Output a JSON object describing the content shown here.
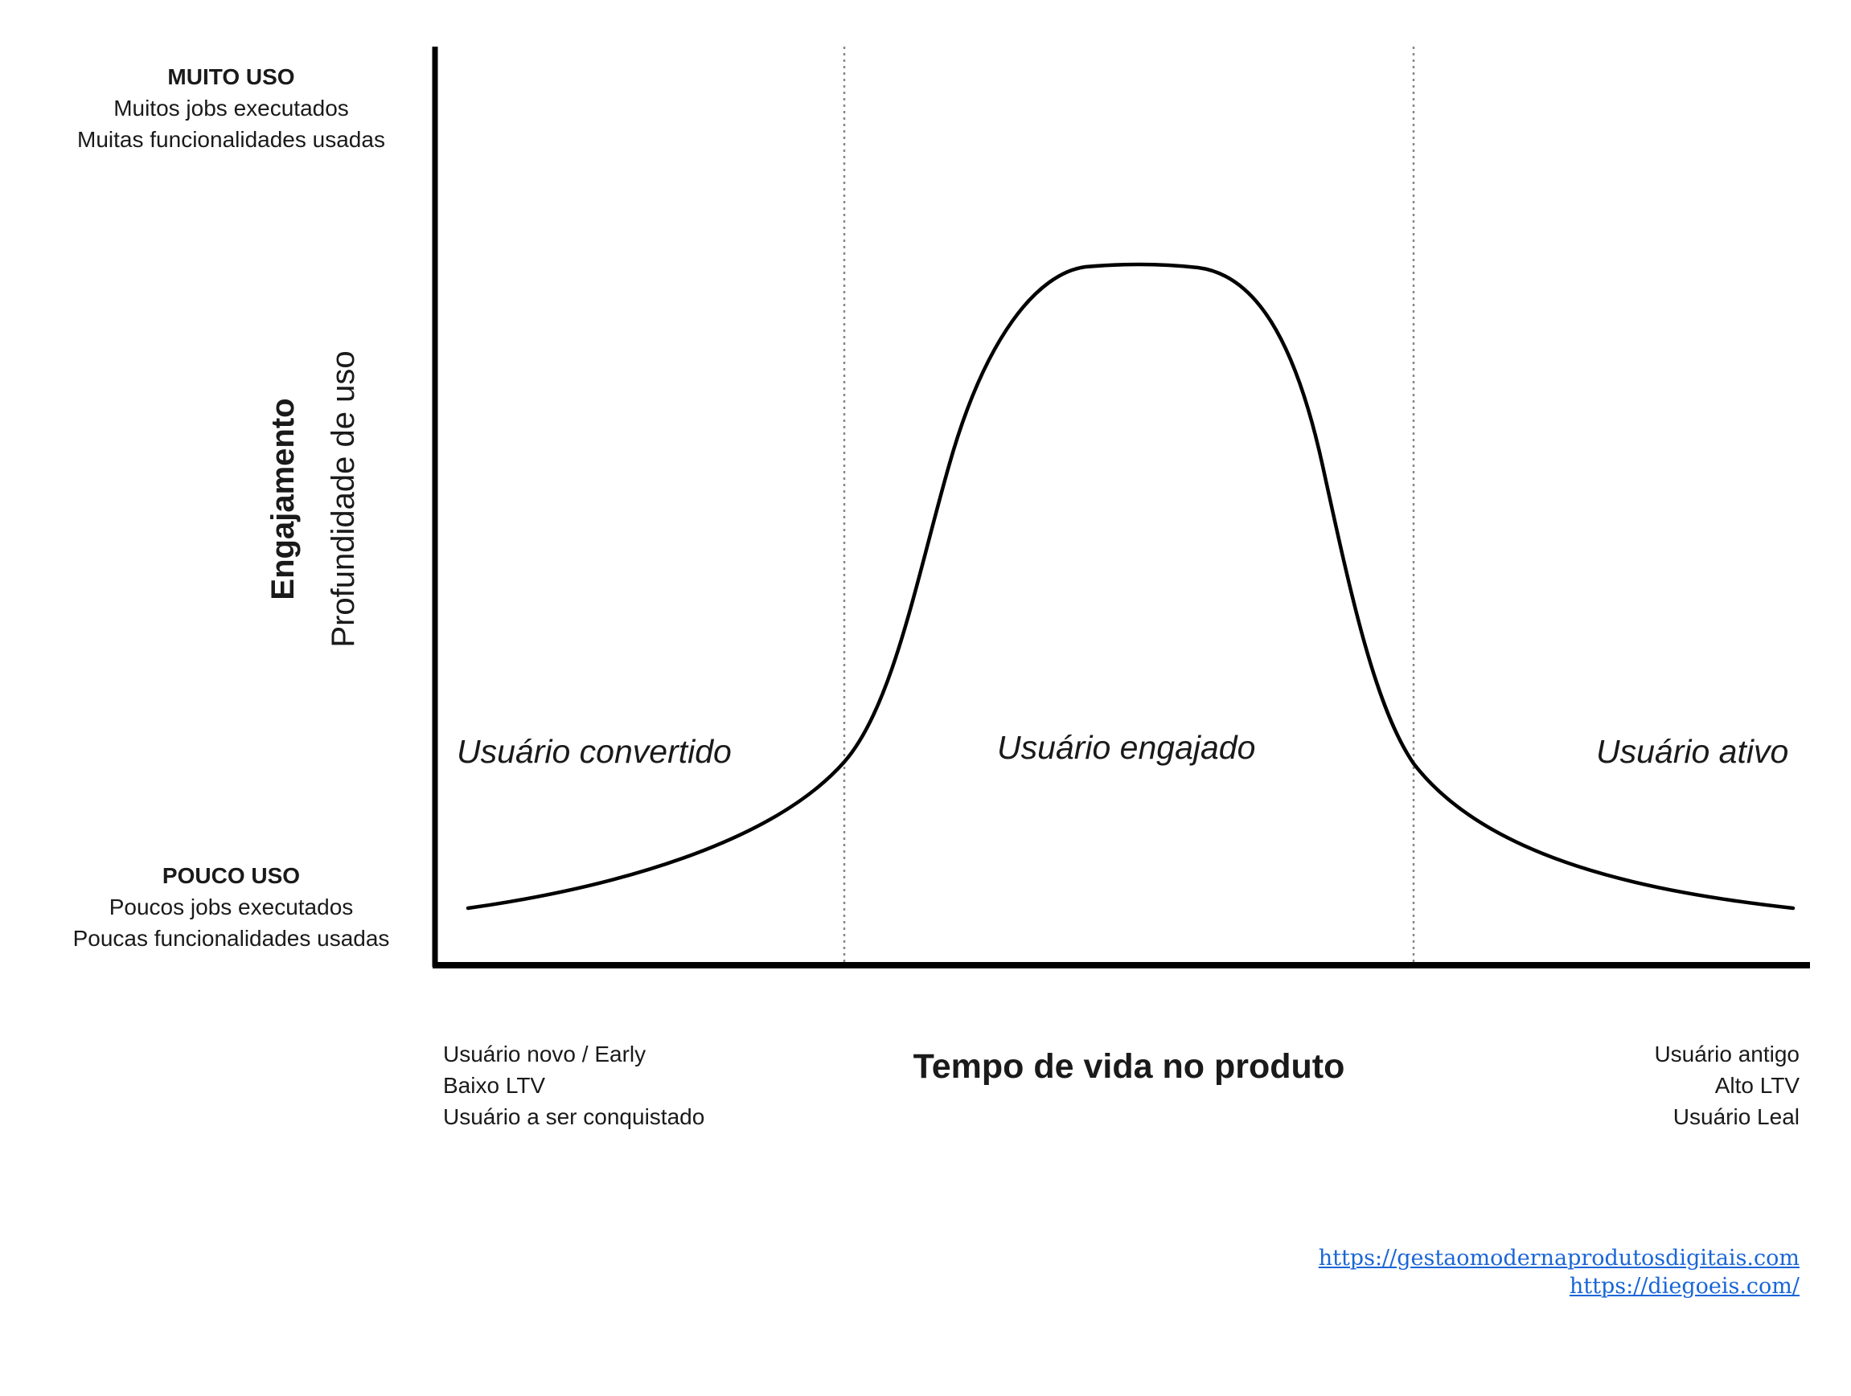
{
  "y_axis": {
    "title": "Engajamento",
    "subtitle": "Profundidade de uso",
    "top": {
      "heading": "MUITO USO",
      "line1": "Muitos jobs executados",
      "line2": "Muitas funcionalidades usadas"
    },
    "bottom": {
      "heading": "POUCO USO",
      "line1": "Poucos jobs executados",
      "line2": "Poucas funcionalidades usadas"
    }
  },
  "x_axis": {
    "title": "Tempo de vida no produto",
    "left": {
      "line1": "Usuário novo / Early",
      "line2": "Baixo LTV",
      "line3": "Usuário a ser conquistado"
    },
    "right": {
      "line1": "Usuário antigo",
      "line2": "Alto LTV",
      "line3": "Usuário Leal"
    }
  },
  "stages": {
    "converted": "Usuário convertido",
    "engaged": "Usuário engajado",
    "active": "Usuário ativo"
  },
  "links": {
    "link1": "https://gestaomodernaprodutosdigitais.com",
    "link2": "https://diegoeis.com/"
  },
  "colors": {
    "axis": "#000000",
    "curve": "#000000",
    "divider": "#888888",
    "link": "#1a66d6"
  }
}
